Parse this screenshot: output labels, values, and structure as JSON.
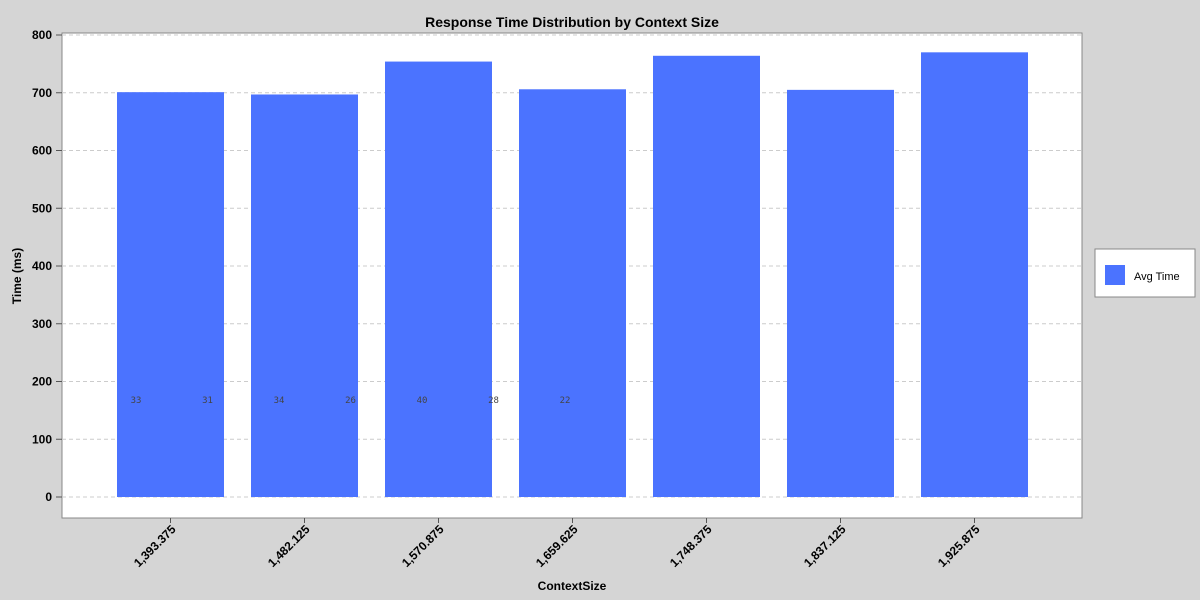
{
  "chart_data": {
    "type": "bar",
    "title": "Response Time Distribution by Context Size",
    "xlabel": "ContextSize",
    "ylabel": "Time (ms)",
    "categories": [
      "1,393.375",
      "1,482.125",
      "1,570.875",
      "1,659.625",
      "1,748.375",
      "1,837.125",
      "1,925.875"
    ],
    "series": [
      {
        "name": "Avg Time",
        "values": [
          701,
          697,
          754,
          706,
          764,
          705,
          770
        ],
        "color": "#4b73ff"
      }
    ],
    "ylim": [
      0,
      800
    ],
    "y_ticks": [
      "0",
      "100",
      "200",
      "300",
      "400",
      "500",
      "600",
      "700",
      "800"
    ],
    "count_labels": [
      "33",
      "31",
      "34",
      "26",
      "40",
      "28",
      "22"
    ],
    "grid": true,
    "legend_position": "right"
  }
}
